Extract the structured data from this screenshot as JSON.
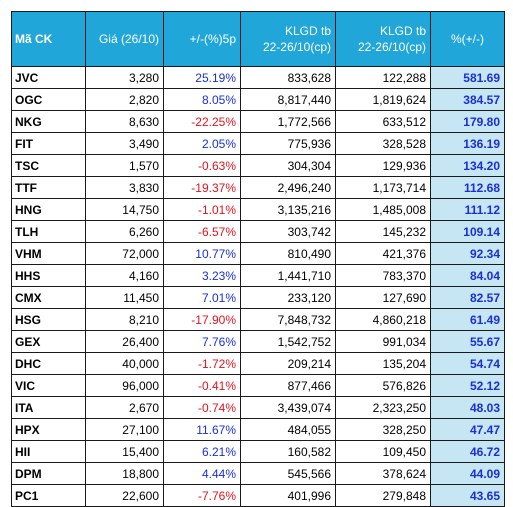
{
  "table": {
    "headers": {
      "code": "Mã CK",
      "price": "Giá (26/10)",
      "change": "+/-(%)5p",
      "vol_line1_a": "KLGD tb",
      "vol_line2_a": "22-26/10(cp)",
      "vol_line1_b": "KLGD tb",
      "vol_line2_b": "22-26/10(cp)",
      "pct": "%(+/-)"
    },
    "colors": {
      "header_bg": "#21a6d9",
      "positive": "#1a2fd6",
      "negative": "#e0141d",
      "pct_bg": "#c6e6f3"
    },
    "rows": [
      {
        "code": "JVC",
        "price": "3,280",
        "change": "25.19%",
        "vol_a": "833,628",
        "vol_b": "122,288",
        "pct": "581.69"
      },
      {
        "code": "OGC",
        "price": "2,820",
        "change": "8.05%",
        "vol_a": "8,817,440",
        "vol_b": "1,819,624",
        "pct": "384.57"
      },
      {
        "code": "NKG",
        "price": "8,630",
        "change": "-22.25%",
        "vol_a": "1,772,566",
        "vol_b": "633,512",
        "pct": "179.80"
      },
      {
        "code": "FIT",
        "price": "3,490",
        "change": "2.05%",
        "vol_a": "775,936",
        "vol_b": "328,528",
        "pct": "136.19"
      },
      {
        "code": "TSC",
        "price": "1,570",
        "change": "-0.63%",
        "vol_a": "304,304",
        "vol_b": "129,936",
        "pct": "134.20"
      },
      {
        "code": "TTF",
        "price": "3,830",
        "change": "-19.37%",
        "vol_a": "2,496,240",
        "vol_b": "1,173,714",
        "pct": "112.68"
      },
      {
        "code": "HNG",
        "price": "14,750",
        "change": "-1.01%",
        "vol_a": "3,135,216",
        "vol_b": "1,485,008",
        "pct": "111.12"
      },
      {
        "code": "TLH",
        "price": "6,260",
        "change": "-6.57%",
        "vol_a": "303,742",
        "vol_b": "145,232",
        "pct": "109.14"
      },
      {
        "code": "VHM",
        "price": "72,000",
        "change": "10.77%",
        "vol_a": "810,490",
        "vol_b": "421,376",
        "pct": "92.34"
      },
      {
        "code": "HHS",
        "price": "4,160",
        "change": "3.23%",
        "vol_a": "1,441,710",
        "vol_b": "783,370",
        "pct": "84.04"
      },
      {
        "code": "CMX",
        "price": "11,450",
        "change": "7.01%",
        "vol_a": "233,120",
        "vol_b": "127,690",
        "pct": "82.57"
      },
      {
        "code": "HSG",
        "price": "8,210",
        "change": "-17.90%",
        "vol_a": "7,848,732",
        "vol_b": "4,860,218",
        "pct": "61.49"
      },
      {
        "code": "GEX",
        "price": "26,400",
        "change": "7.76%",
        "vol_a": "1,542,752",
        "vol_b": "991,034",
        "pct": "55.67"
      },
      {
        "code": "DHC",
        "price": "40,000",
        "change": "-1.72%",
        "vol_a": "209,214",
        "vol_b": "135,204",
        "pct": "54.74"
      },
      {
        "code": "VIC",
        "price": "96,000",
        "change": "-0.41%",
        "vol_a": "877,466",
        "vol_b": "576,826",
        "pct": "52.12"
      },
      {
        "code": "ITA",
        "price": "2,670",
        "change": "-0.74%",
        "vol_a": "3,439,074",
        "vol_b": "2,323,250",
        "pct": "48.03"
      },
      {
        "code": "HPX",
        "price": "27,100",
        "change": "11.67%",
        "vol_a": "484,055",
        "vol_b": "328,250",
        "pct": "47.47"
      },
      {
        "code": "HII",
        "price": "15,400",
        "change": "6.21%",
        "vol_a": "160,582",
        "vol_b": "109,450",
        "pct": "46.72"
      },
      {
        "code": "DPM",
        "price": "18,800",
        "change": "4.44%",
        "vol_a": "545,566",
        "vol_b": "378,624",
        "pct": "44.09"
      },
      {
        "code": "PC1",
        "price": "22,600",
        "change": "-7.76%",
        "vol_a": "401,996",
        "vol_b": "279,848",
        "pct": "43.65"
      }
    ]
  }
}
